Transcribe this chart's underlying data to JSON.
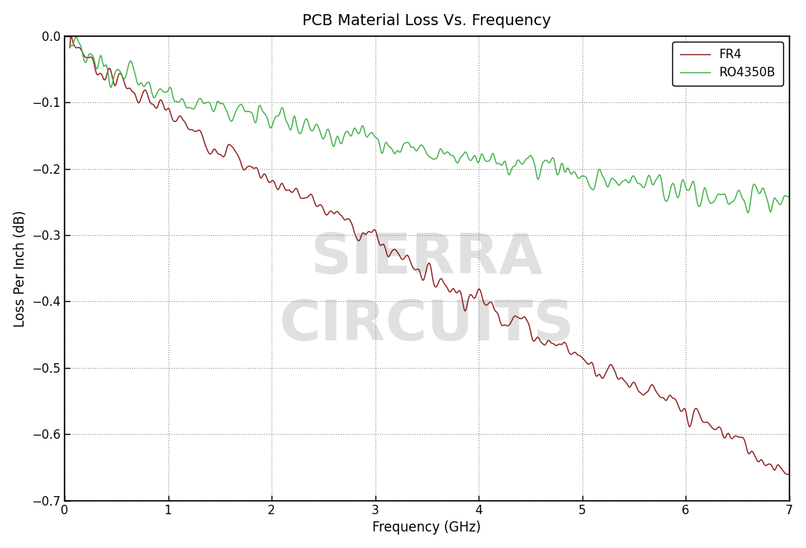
{
  "title": "PCB Material Loss Vs. Frequency",
  "xlabel": "Frequency (GHz)",
  "ylabel": "Loss Per Inch (dB)",
  "xlim": [
    0,
    7
  ],
  "ylim": [
    -0.7,
    0
  ],
  "xticks": [
    0,
    1,
    2,
    3,
    4,
    5,
    6,
    7
  ],
  "yticks": [
    0,
    -0.1,
    -0.2,
    -0.3,
    -0.4,
    -0.5,
    -0.6,
    -0.7
  ],
  "fr4_color": "#8B1A1A",
  "ro4350b_color": "#3CB043",
  "background_color": "#ffffff",
  "grid_color": "#888888",
  "title_fontsize": 14,
  "axis_label_fontsize": 12,
  "tick_fontsize": 11,
  "legend_fontsize": 11
}
